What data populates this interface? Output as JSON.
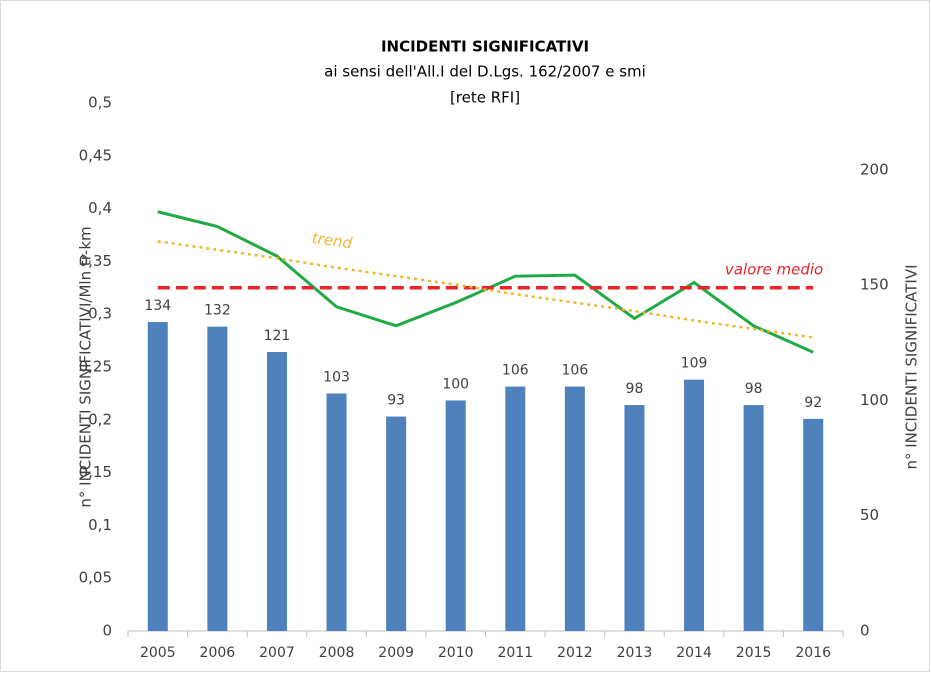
{
  "chart_data": {
    "type": "combo",
    "title": "INCIDENTI SIGNIFICATIVI",
    "subtitle": [
      "ai sensi dell'All.I del D.Lgs. 162/2007 e smi",
      "[rete RFI]"
    ],
    "y_label": "n° INCIDENTI SIGNIFICATIVI/Mln tr-km",
    "y2_label": "n° INCIDENTI SIGNIFICATIVI",
    "categories": [
      "2005",
      "2006",
      "2007",
      "2008",
      "2009",
      "2010",
      "2011",
      "2012",
      "2013",
      "2014",
      "2015",
      "2016"
    ],
    "series": [
      {
        "type": "bar",
        "axis": "y2",
        "color": "#4f81bd",
        "values": [
          134,
          132,
          121,
          103,
          93,
          100,
          106,
          106,
          98,
          109,
          98,
          92
        ]
      },
      {
        "type": "line",
        "axis": "y",
        "color": "#1faa46",
        "dash": "solid",
        "values": [
          0.397,
          0.383,
          0.355,
          0.307,
          0.289,
          0.311,
          0.336,
          0.337,
          0.296,
          0.33,
          0.289,
          0.264
        ]
      },
      {
        "type": "line",
        "axis": "y",
        "name": "valore medio",
        "color": "#e8262a",
        "dash": "dashed",
        "values": [
          0.325,
          0.325,
          0.325,
          0.325,
          0.325,
          0.325,
          0.325,
          0.325,
          0.325,
          0.325,
          0.325,
          0.325
        ]
      },
      {
        "type": "line",
        "axis": "y",
        "name": "trend",
        "color": "#f2b52c",
        "dash": "dotted",
        "values": [
          0.369,
          0.361,
          0.353,
          0.344,
          0.336,
          0.328,
          0.319,
          0.311,
          0.303,
          0.294,
          0.286,
          0.278
        ]
      }
    ],
    "ylim": [
      0,
      0.5
    ],
    "yticks": [
      0,
      {
        "value": 0.05,
        "label": "0,05"
      },
      {
        "value": 0.1,
        "label": "0,1"
      },
      {
        "value": 0.15,
        "label": "0,15"
      },
      {
        "value": 0.2,
        "label": "0,2"
      },
      {
        "value": 0.25,
        "label": "0,25"
      },
      {
        "value": 0.3,
        "label": "0,3"
      },
      {
        "value": 0.35,
        "label": "0,35"
      },
      {
        "value": 0.4,
        "label": "0,4"
      },
      {
        "value": 0.45,
        "label": "0,45"
      },
      {
        "value": 0.5,
        "label": "0,5"
      }
    ],
    "y2lim": [
      0,
      229
    ],
    "y2ticks": [
      0,
      50,
      100,
      150,
      200
    ]
  }
}
